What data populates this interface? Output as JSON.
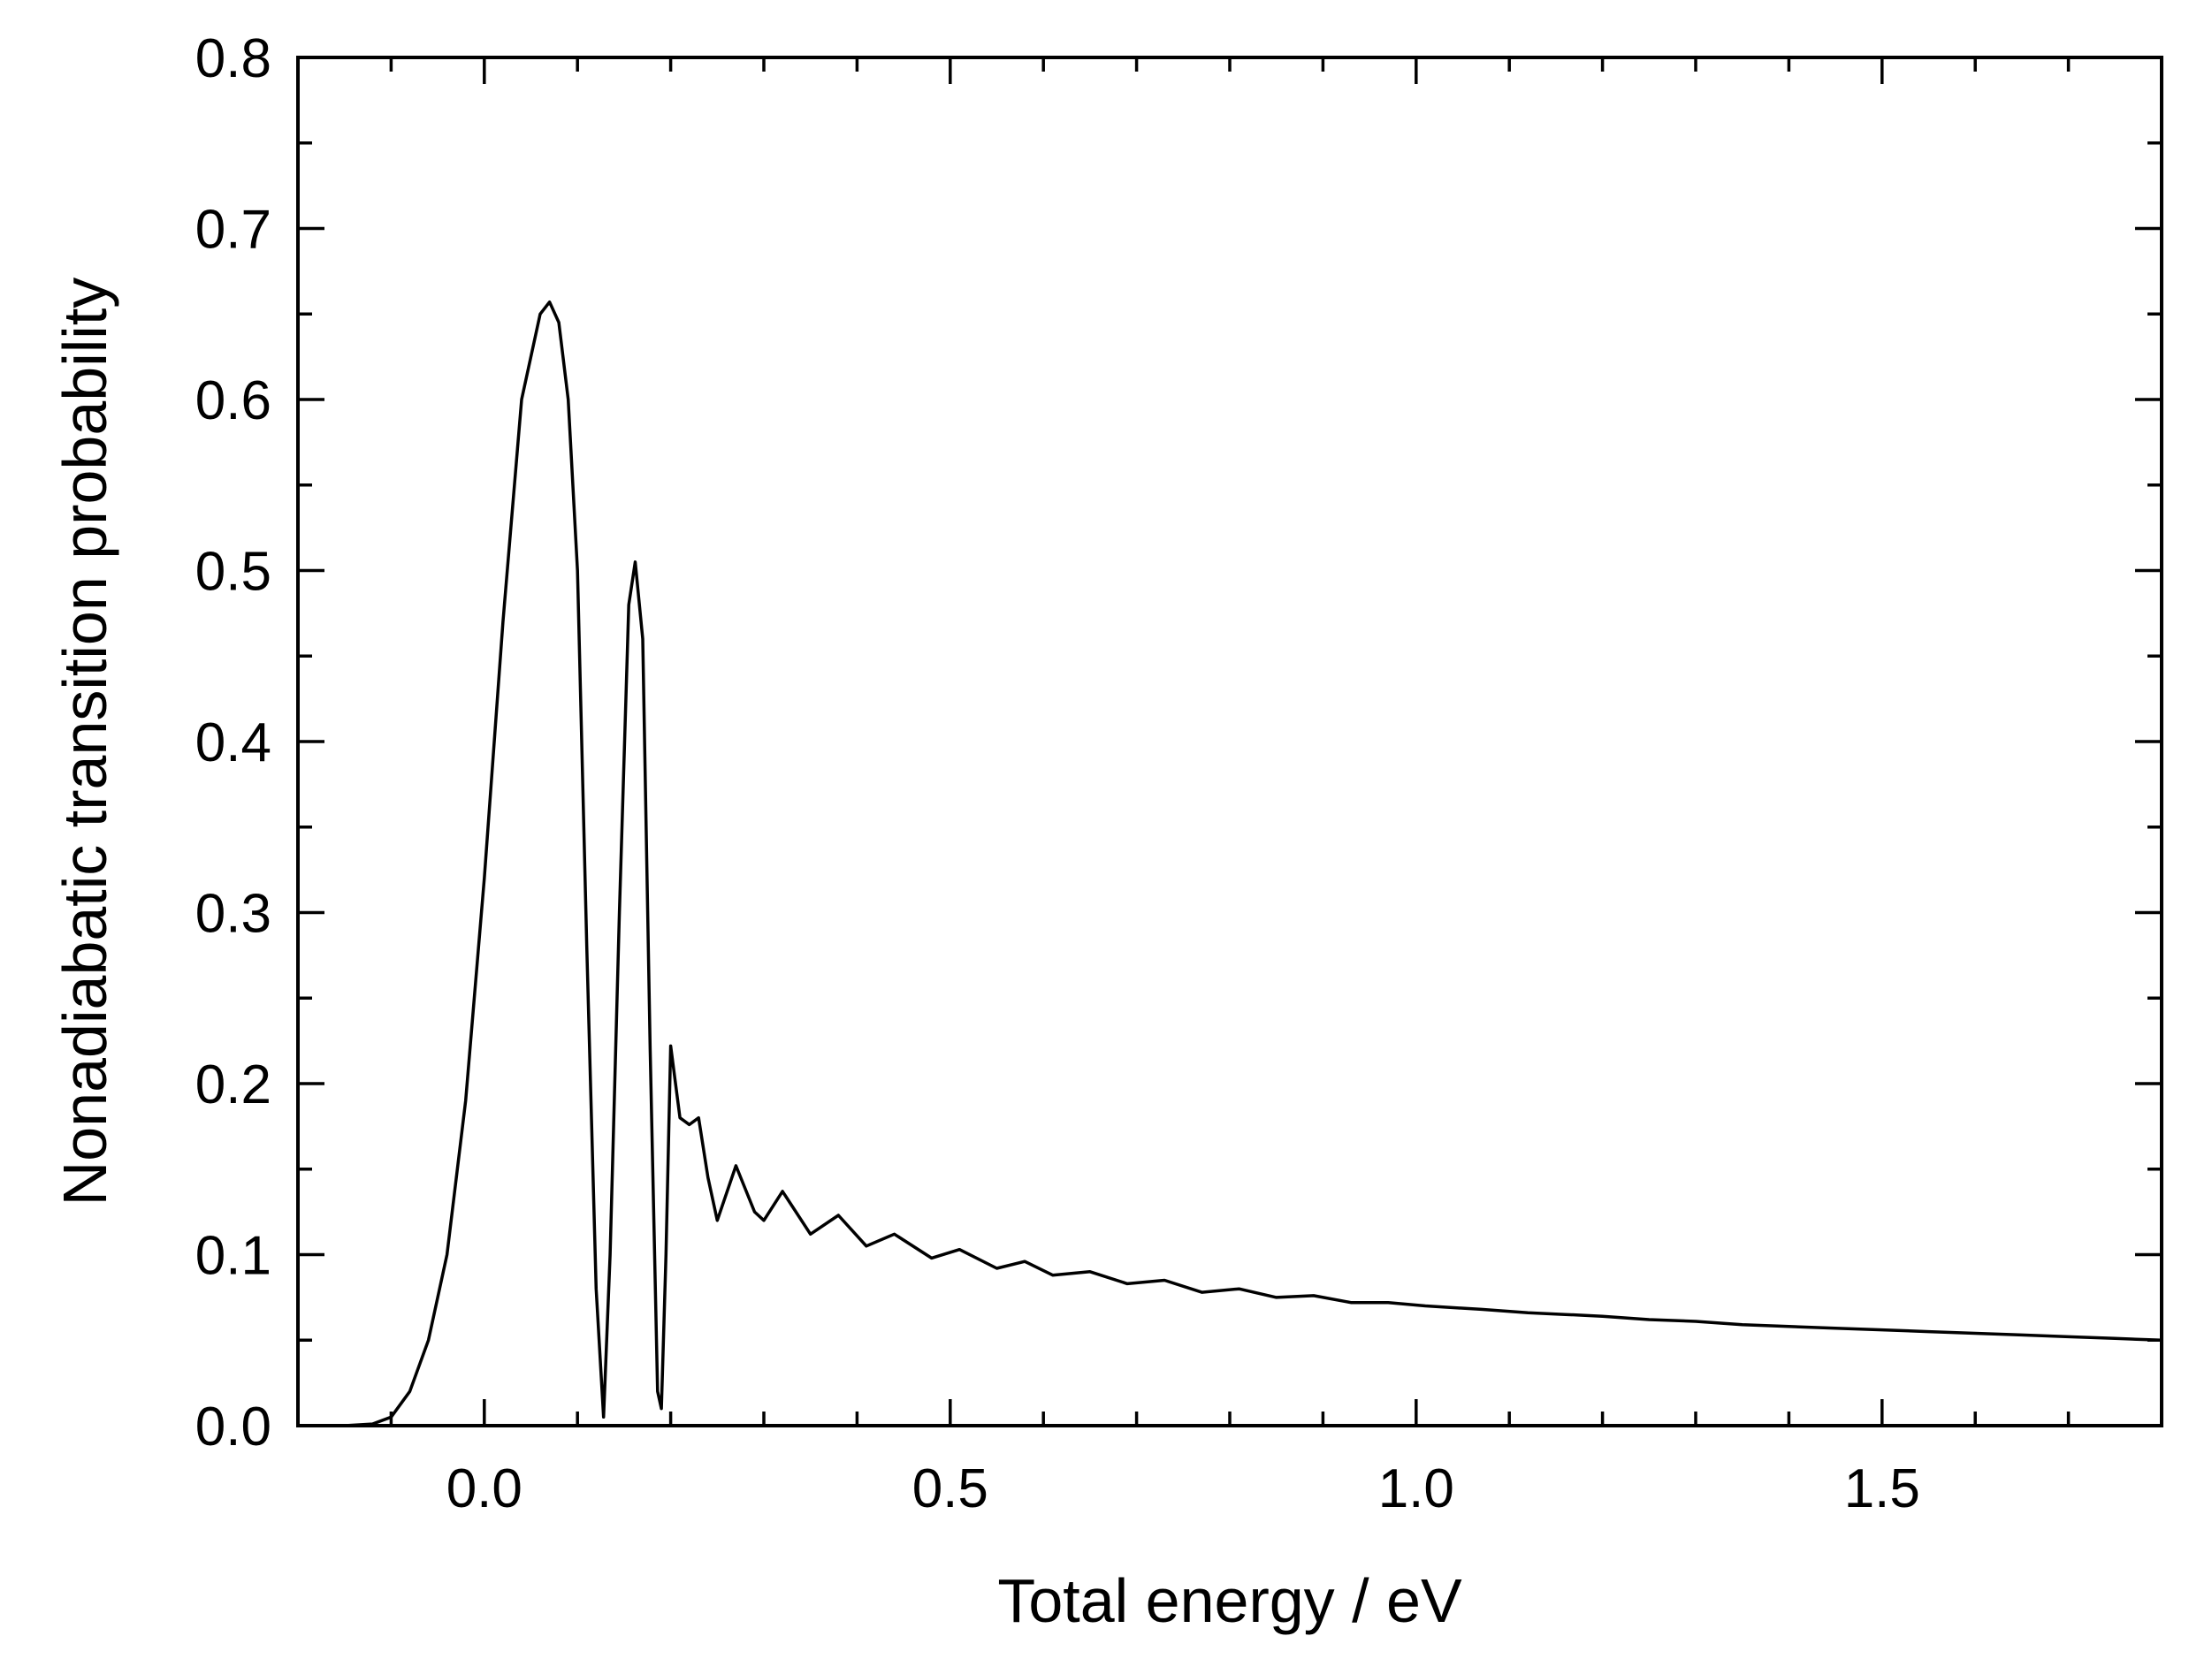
{
  "chart_data": {
    "type": "line",
    "title": "",
    "xlabel": "Total energy / eV",
    "ylabel": "Nonadiabatic transition probability",
    "xlim": [
      -0.2,
      1.8
    ],
    "ylim": [
      0.0,
      0.8
    ],
    "x_ticks": [
      0.0,
      0.5,
      1.0,
      1.5
    ],
    "x_tick_labels": [
      "0.0",
      "0.5",
      "1.0",
      "1.5"
    ],
    "y_ticks": [
      0.0,
      0.1,
      0.2,
      0.3,
      0.4,
      0.5,
      0.6,
      0.7,
      0.8
    ],
    "y_tick_labels": [
      "0.0",
      "0.1",
      "0.2",
      "0.3",
      "0.4",
      "0.5",
      "0.6",
      "0.7",
      "0.8"
    ],
    "grid": false,
    "legend": "none",
    "line_color": "#000000",
    "series": [
      {
        "x": [
          -0.2,
          -0.15,
          -0.12,
          -0.1,
          -0.08,
          -0.06,
          -0.04,
          -0.02,
          0.0,
          0.02,
          0.04,
          0.06,
          0.07,
          0.08,
          0.09,
          0.1,
          0.11,
          0.12,
          0.128,
          0.135,
          0.145,
          0.155,
          0.162,
          0.17,
          0.178,
          0.186,
          0.19,
          0.195,
          0.2,
          0.21,
          0.22,
          0.23,
          0.24,
          0.25,
          0.27,
          0.29,
          0.3,
          0.32,
          0.35,
          0.38,
          0.41,
          0.44,
          0.48,
          0.51,
          0.55,
          0.58,
          0.61,
          0.65,
          0.69,
          0.73,
          0.77,
          0.81,
          0.85,
          0.89,
          0.93,
          0.97,
          1.01,
          1.07,
          1.12,
          1.16,
          1.2,
          1.25,
          1.3,
          1.35,
          1.4,
          1.45,
          1.5,
          1.55,
          1.6,
          1.65,
          1.7,
          1.75,
          1.8
        ],
        "y": [
          0.0,
          0.0,
          0.001,
          0.005,
          0.02,
          0.05,
          0.1,
          0.19,
          0.32,
          0.47,
          0.6,
          0.65,
          0.657,
          0.645,
          0.6,
          0.5,
          0.28,
          0.08,
          0.005,
          0.1,
          0.3,
          0.48,
          0.505,
          0.46,
          0.22,
          0.02,
          0.01,
          0.1,
          0.222,
          0.18,
          0.176,
          0.18,
          0.145,
          0.12,
          0.152,
          0.125,
          0.12,
          0.137,
          0.112,
          0.123,
          0.105,
          0.112,
          0.098,
          0.103,
          0.092,
          0.096,
          0.088,
          0.09,
          0.083,
          0.085,
          0.078,
          0.08,
          0.075,
          0.076,
          0.072,
          0.072,
          0.07,
          0.068,
          0.066,
          0.065,
          0.064,
          0.062,
          0.061,
          0.059,
          0.058,
          0.057,
          0.056,
          0.055,
          0.054,
          0.053,
          0.052,
          0.051,
          0.05
        ]
      }
    ]
  }
}
